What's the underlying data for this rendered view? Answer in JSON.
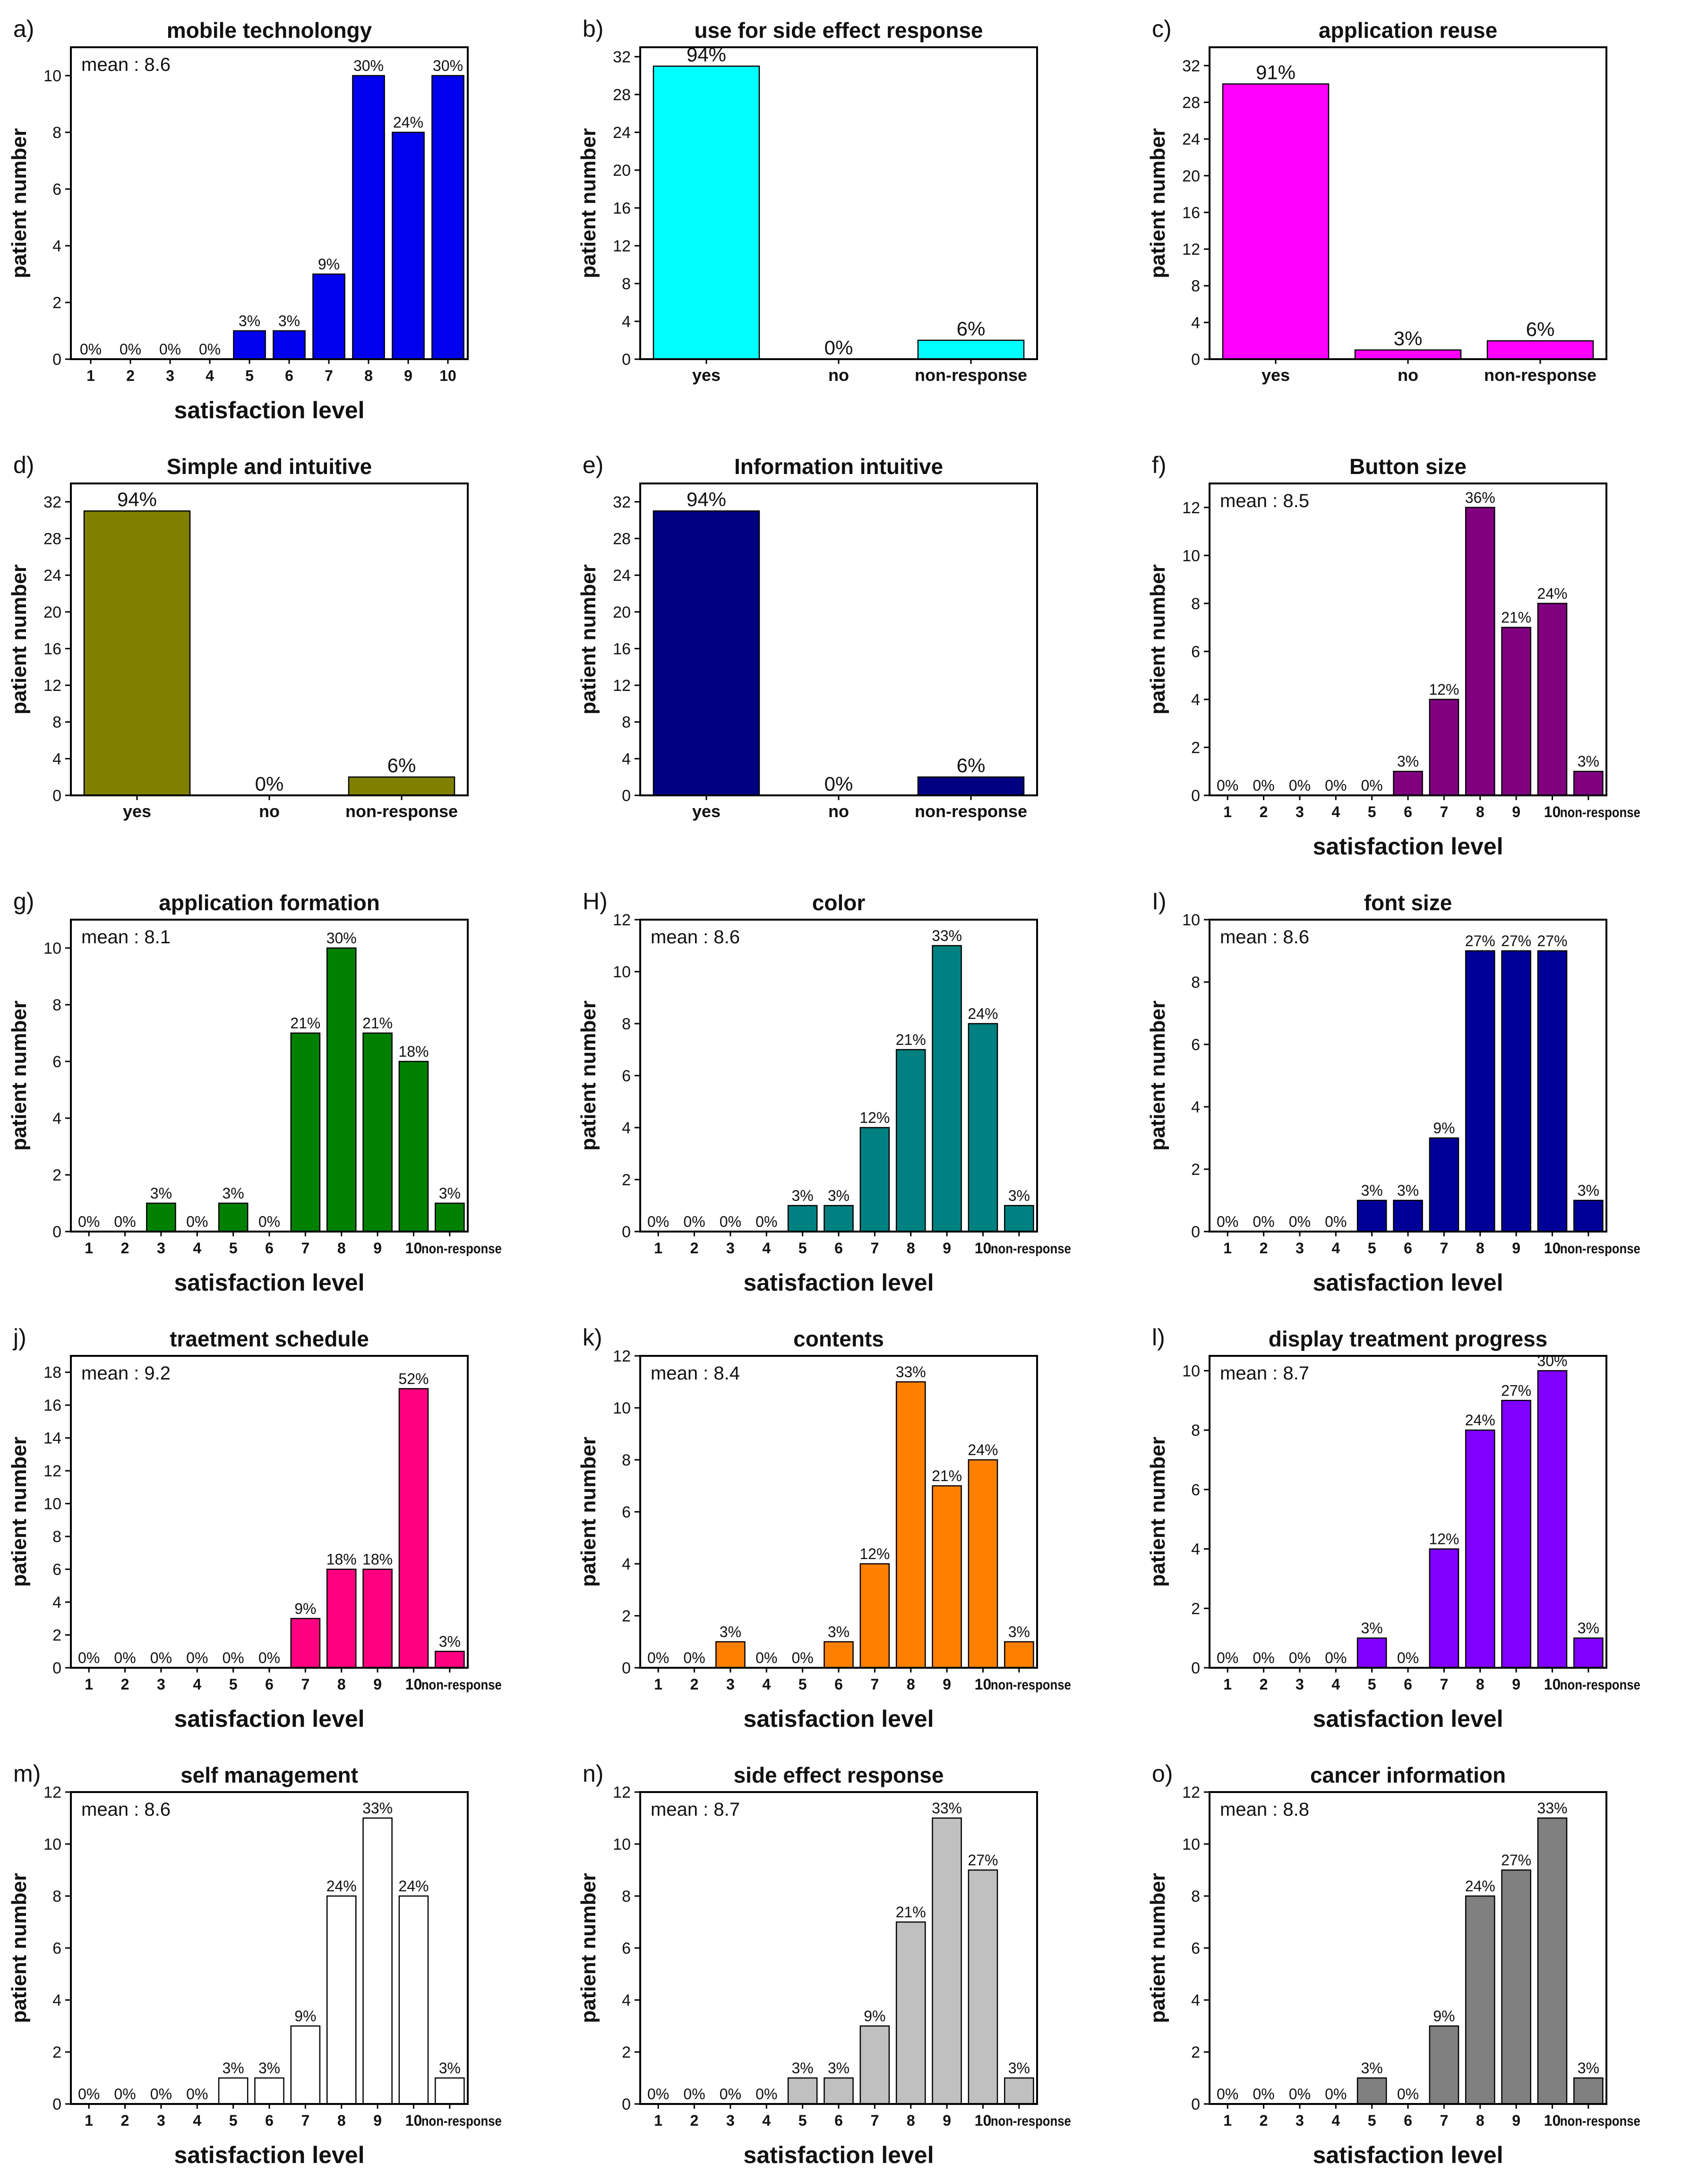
{
  "figure": {
    "axis_y_label": "patient number",
    "axis_x_label": "satisfaction level"
  },
  "chart_data": [
    {
      "panel": "a)",
      "type": "bar",
      "title": "mobile technolongy",
      "mean": "mean : 8.6",
      "ylabel": "patient number",
      "xlabel": "satisfaction level",
      "color": "#0000ee",
      "ylim": [
        0,
        11
      ],
      "yticks": [
        0,
        2,
        4,
        6,
        8,
        10
      ],
      "categories": [
        "1",
        "2",
        "3",
        "4",
        "5",
        "6",
        "7",
        "8",
        "9",
        "10"
      ],
      "values": [
        0,
        0,
        0,
        0,
        1,
        1,
        3,
        10,
        8,
        10
      ],
      "labels": [
        "0%",
        "0%",
        "0%",
        "0%",
        "3%",
        "3%",
        "9%",
        "30%",
        "24%",
        "30%"
      ]
    },
    {
      "panel": "b)",
      "type": "bar",
      "title": "use for side effect response",
      "ylabel": "patient number",
      "xlabel": "",
      "color": "#00ffff",
      "ylim": [
        0,
        33
      ],
      "yticks": [
        0,
        4,
        8,
        12,
        16,
        20,
        24,
        28,
        32
      ],
      "categories": [
        "yes",
        "no",
        "non-response"
      ],
      "values": [
        31,
        0,
        2
      ],
      "labels": [
        "94%",
        "0%",
        "6%"
      ]
    },
    {
      "panel": "c)",
      "type": "bar",
      "title": "application reuse",
      "ylabel": "patient number",
      "xlabel": "",
      "color": "#ff00ff",
      "ylim": [
        0,
        34
      ],
      "yticks": [
        0,
        4,
        8,
        12,
        16,
        20,
        24,
        28,
        32
      ],
      "categories": [
        "yes",
        "no",
        "non-response"
      ],
      "values": [
        30,
        1,
        2
      ],
      "labels": [
        "91%",
        "3%",
        "6%"
      ]
    },
    {
      "panel": "d)",
      "type": "bar",
      "title": "Simple and intuitive",
      "ylabel": "patient number",
      "xlabel": "",
      "color": "#808000",
      "ylim": [
        0,
        34
      ],
      "yticks": [
        0,
        4,
        8,
        12,
        16,
        20,
        24,
        28,
        32
      ],
      "categories": [
        "yes",
        "no",
        "non-response"
      ],
      "values": [
        31,
        0,
        2
      ],
      "labels": [
        "94%",
        "0%",
        "6%"
      ]
    },
    {
      "panel": "e)",
      "type": "bar",
      "title": "Information intuitive",
      "ylabel": "patient number",
      "xlabel": "",
      "color": "#000080",
      "ylim": [
        0,
        34
      ],
      "yticks": [
        0,
        4,
        8,
        12,
        16,
        20,
        24,
        28,
        32
      ],
      "categories": [
        "yes",
        "no",
        "non-response"
      ],
      "values": [
        31,
        0,
        2
      ],
      "labels": [
        "94%",
        "0%",
        "6%"
      ]
    },
    {
      "panel": "f)",
      "type": "bar",
      "title": "Button size",
      "mean": "mean : 8.5",
      "ylabel": "patient number",
      "xlabel": "satisfaction level",
      "color": "#800080",
      "ylim": [
        0,
        13
      ],
      "yticks": [
        0,
        2,
        4,
        6,
        8,
        10,
        12
      ],
      "categories": [
        "1",
        "2",
        "3",
        "4",
        "5",
        "6",
        "7",
        "8",
        "9",
        "10",
        "non-response"
      ],
      "values": [
        0,
        0,
        0,
        0,
        0,
        1,
        4,
        12,
        7,
        8,
        1
      ],
      "labels": [
        "0%",
        "0%",
        "0%",
        "0%",
        "0%",
        "3%",
        "12%",
        "36%",
        "21%",
        "24%",
        "3%"
      ]
    },
    {
      "panel": "g)",
      "type": "bar",
      "title": "application formation",
      "mean": "mean : 8.1",
      "ylabel": "patient number",
      "xlabel": "satisfaction level",
      "color": "#008000",
      "ylim": [
        0,
        11
      ],
      "yticks": [
        0,
        2,
        4,
        6,
        8,
        10
      ],
      "categories": [
        "1",
        "2",
        "3",
        "4",
        "5",
        "6",
        "7",
        "8",
        "9",
        "10",
        "non-response"
      ],
      "values": [
        0,
        0,
        1,
        0,
        1,
        0,
        7,
        10,
        7,
        6,
        1
      ],
      "labels": [
        "0%",
        "0%",
        "3%",
        "0%",
        "3%",
        "0%",
        "21%",
        "30%",
        "21%",
        "18%",
        "3%"
      ]
    },
    {
      "panel": "H)",
      "type": "bar",
      "title": "color",
      "mean": "mean : 8.6",
      "ylabel": "patient number",
      "xlabel": "satisfaction level",
      "color": "#008080",
      "ylim": [
        0,
        12
      ],
      "yticks": [
        0,
        2,
        4,
        6,
        8,
        10,
        12
      ],
      "categories": [
        "1",
        "2",
        "3",
        "4",
        "5",
        "6",
        "7",
        "8",
        "9",
        "10",
        "non-response"
      ],
      "values": [
        0,
        0,
        0,
        0,
        1,
        1,
        4,
        7,
        11,
        8,
        1
      ],
      "labels": [
        "0%",
        "0%",
        "0%",
        "0%",
        "3%",
        "3%",
        "12%",
        "21%",
        "33%",
        "24%",
        "3%"
      ]
    },
    {
      "panel": "I)",
      "type": "bar",
      "title": "font size",
      "mean": "mean : 8.6",
      "ylabel": "patient number",
      "xlabel": "satisfaction level",
      "color": "#000099",
      "ylim": [
        0,
        10
      ],
      "yticks": [
        0,
        2,
        4,
        6,
        8,
        10
      ],
      "categories": [
        "1",
        "2",
        "3",
        "4",
        "5",
        "6",
        "7",
        "8",
        "9",
        "10",
        "non-response"
      ],
      "values": [
        0,
        0,
        0,
        0,
        1,
        1,
        3,
        9,
        9,
        9,
        1
      ],
      "labels": [
        "0%",
        "0%",
        "0%",
        "0%",
        "3%",
        "3%",
        "9%",
        "27%",
        "27%",
        "27%",
        "3%"
      ]
    },
    {
      "panel": "j)",
      "type": "bar",
      "title": "traetment schedule",
      "mean": "mean : 9.2",
      "ylabel": "patient number",
      "xlabel": "satisfaction level",
      "color": "#ff0080",
      "ylim": [
        0,
        19
      ],
      "yticks": [
        0,
        2,
        4,
        6,
        8,
        10,
        12,
        14,
        16,
        18
      ],
      "categories": [
        "1",
        "2",
        "3",
        "4",
        "5",
        "6",
        "7",
        "8",
        "9",
        "10",
        "non-response"
      ],
      "values": [
        0,
        0,
        0,
        0,
        0,
        0,
        3,
        6,
        6,
        17,
        1
      ],
      "labels": [
        "0%",
        "0%",
        "0%",
        "0%",
        "0%",
        "0%",
        "9%",
        "18%",
        "18%",
        "52%",
        "3%"
      ]
    },
    {
      "panel": "k)",
      "type": "bar",
      "title": "contents",
      "mean": "mean : 8.4",
      "ylabel": "patient number",
      "xlabel": "satisfaction level",
      "color": "#ff8000",
      "ylim": [
        0,
        12
      ],
      "yticks": [
        0,
        2,
        4,
        6,
        8,
        10,
        12
      ],
      "categories": [
        "1",
        "2",
        "3",
        "4",
        "5",
        "6",
        "7",
        "8",
        "9",
        "10",
        "non-response"
      ],
      "values": [
        0,
        0,
        1,
        0,
        0,
        1,
        4,
        11,
        7,
        8,
        1
      ],
      "labels": [
        "0%",
        "0%",
        "3%",
        "0%",
        "0%",
        "3%",
        "12%",
        "33%",
        "21%",
        "24%",
        "3%"
      ]
    },
    {
      "panel": "l)",
      "type": "bar",
      "title": "display treatment progress",
      "mean": "mean : 8.7",
      "ylabel": "patient number",
      "xlabel": "satisfaction level",
      "color": "#8000ff",
      "ylim": [
        0,
        10.5
      ],
      "yticks": [
        0,
        2,
        4,
        6,
        8,
        10
      ],
      "categories": [
        "1",
        "2",
        "3",
        "4",
        "5",
        "6",
        "7",
        "8",
        "9",
        "10",
        "non-response"
      ],
      "values": [
        0,
        0,
        0,
        0,
        1,
        0,
        4,
        8,
        9,
        10,
        1
      ],
      "labels": [
        "0%",
        "0%",
        "0%",
        "0%",
        "3%",
        "0%",
        "12%",
        "24%",
        "27%",
        "30%",
        "3%"
      ]
    },
    {
      "panel": "m)",
      "type": "bar",
      "title": "self management",
      "mean": "mean : 8.6",
      "ylabel": "patient number",
      "xlabel": "satisfaction level",
      "color": "#ffffff",
      "ylim": [
        0,
        12
      ],
      "yticks": [
        0,
        2,
        4,
        6,
        8,
        10,
        12
      ],
      "categories": [
        "1",
        "2",
        "3",
        "4",
        "5",
        "6",
        "7",
        "8",
        "9",
        "10",
        "non-response"
      ],
      "values": [
        0,
        0,
        0,
        0,
        1,
        1,
        3,
        8,
        11,
        8,
        1
      ],
      "labels": [
        "0%",
        "0%",
        "0%",
        "0%",
        "3%",
        "3%",
        "9%",
        "24%",
        "33%",
        "24%",
        "3%"
      ]
    },
    {
      "panel": "n)",
      "type": "bar",
      "title": "side effect response",
      "mean": "mean : 8.7",
      "ylabel": "patient number",
      "xlabel": "satisfaction level",
      "color": "#c0c0c0",
      "ylim": [
        0,
        12
      ],
      "yticks": [
        0,
        2,
        4,
        6,
        8,
        10,
        12
      ],
      "categories": [
        "1",
        "2",
        "3",
        "4",
        "5",
        "6",
        "7",
        "8",
        "9",
        "10",
        "non-response"
      ],
      "values": [
        0,
        0,
        0,
        0,
        1,
        1,
        3,
        7,
        11,
        9,
        1
      ],
      "labels": [
        "0%",
        "0%",
        "0%",
        "0%",
        "3%",
        "3%",
        "9%",
        "21%",
        "33%",
        "27%",
        "3%"
      ]
    },
    {
      "panel": "o)",
      "type": "bar",
      "title": "cancer information",
      "mean": "mean : 8.8",
      "ylabel": "patient number",
      "xlabel": "satisfaction level",
      "color": "#808080",
      "ylim": [
        0,
        12
      ],
      "yticks": [
        0,
        2,
        4,
        6,
        8,
        10,
        12
      ],
      "categories": [
        "1",
        "2",
        "3",
        "4",
        "5",
        "6",
        "7",
        "8",
        "9",
        "10",
        "non-response"
      ],
      "values": [
        0,
        0,
        0,
        0,
        1,
        0,
        3,
        8,
        9,
        11,
        1
      ],
      "labels": [
        "0%",
        "0%",
        "0%",
        "0%",
        "3%",
        "0%",
        "9%",
        "24%",
        "27%",
        "33%",
        "3%"
      ]
    }
  ]
}
